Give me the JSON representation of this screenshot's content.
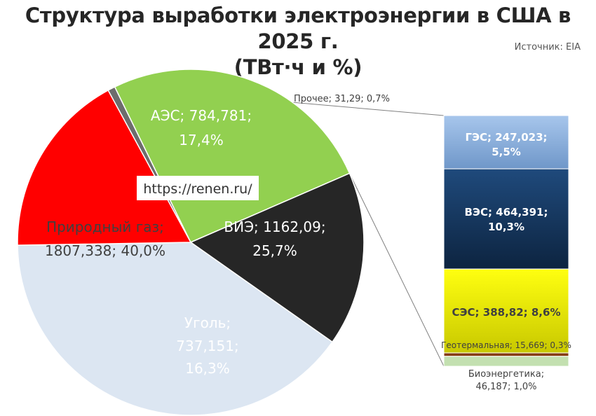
{
  "title_line1": "Структура выработки электроэнергии в США в 2025 г.",
  "title_line2": "(ТВт·ч и %)",
  "source": "Источник: EIA",
  "watermark": "https://renen.ru/",
  "chart_data": [
    {
      "type": "pie",
      "title": "Структура выработки электроэнергии в США в 2025 г. (ТВт·ч и %)",
      "slices": [
        {
          "name": "Прочее",
          "value": 31.29,
          "percent": 0.7,
          "color": "#6d6d6d",
          "label_line1": "Прочее; 31,29; 0,7%",
          "label_line2": ""
        },
        {
          "name": "ВИЭ",
          "value": 1162.09,
          "percent": 25.7,
          "color": "#92d050",
          "label_line1": "ВИЭ; 1162,09;",
          "label_line2": "25,7%"
        },
        {
          "name": "Уголь",
          "value": 737.151,
          "percent": 16.3,
          "color": "#262626",
          "label_line1": "Уголь;",
          "label_line2": "737,151;",
          "label_line3": "16,3%"
        },
        {
          "name": "Природный газ",
          "value": 1807.338,
          "percent": 40.0,
          "color": "#dce6f2",
          "label_line1": "Природный газ;",
          "label_line2": "1807,338; 40,0%"
        },
        {
          "name": "АЭС",
          "value": 784.781,
          "percent": 17.4,
          "color": "#ff0000",
          "label_line1": "АЭС; 784,781;",
          "label_line2": "17,4%"
        }
      ]
    },
    {
      "type": "bar",
      "stacked": true,
      "title": "ВИЭ",
      "segments": [
        {
          "name": "ГЭС",
          "value": 247.023,
          "percent": 5.5,
          "color": "#8eb4e3",
          "label_line1": "ГЭС; 247,023;",
          "label_line2": "5,5%"
        },
        {
          "name": "ВЭС",
          "value": 464.391,
          "percent": 10.3,
          "color": "#17375e",
          "label_line1": "ВЭС; 464,391;",
          "label_line2": "10,3%"
        },
        {
          "name": "СЭС",
          "value": 388.82,
          "percent": 8.6,
          "color": "#e8e800",
          "label_line1": "СЭС; 388,82; 8,6%",
          "label_line2": ""
        },
        {
          "name": "Геотермальная",
          "value": 15.669,
          "percent": 0.3,
          "color": "#843c0c",
          "label_line1": "Геотермальная; 15,669; 0,3%",
          "label_line2": ""
        },
        {
          "name": "Биоэнергетика",
          "value": 46.187,
          "percent": 1.0,
          "color": "#c3e0b0",
          "label_line1": "Биоэнергетика;",
          "label_line2": "46,187; 1,0%"
        }
      ]
    }
  ]
}
